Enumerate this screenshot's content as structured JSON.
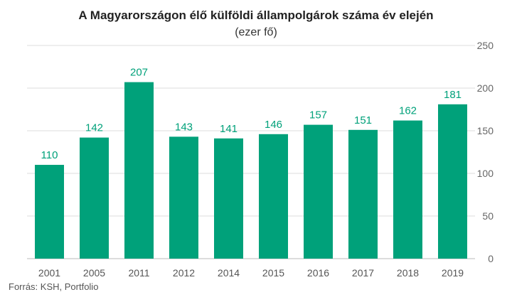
{
  "chart_data": {
    "type": "bar",
    "title": "A Magyarországon élő külföldi állampolgárok száma év elején",
    "subtitle": "(ezer fő)",
    "categories": [
      "2001",
      "2005",
      "2011",
      "2012",
      "2014",
      "2015",
      "2016",
      "2017",
      "2018",
      "2019"
    ],
    "values": [
      110,
      142,
      207,
      143,
      141,
      146,
      157,
      151,
      162,
      181
    ],
    "data_labels": [
      "110",
      "142",
      "207",
      "143",
      "141",
      "146",
      "157",
      "151",
      "162",
      "181"
    ],
    "ylim": [
      0,
      250
    ],
    "yticks": [
      0,
      50,
      100,
      150,
      200,
      250
    ],
    "y_axis_position": "right",
    "grid": true,
    "legend": "none",
    "bar_color": "#00a17a",
    "label_color": "#00a17a",
    "grid_color": "#dddddd"
  },
  "source": "Forrás: KSH, Portfolio"
}
